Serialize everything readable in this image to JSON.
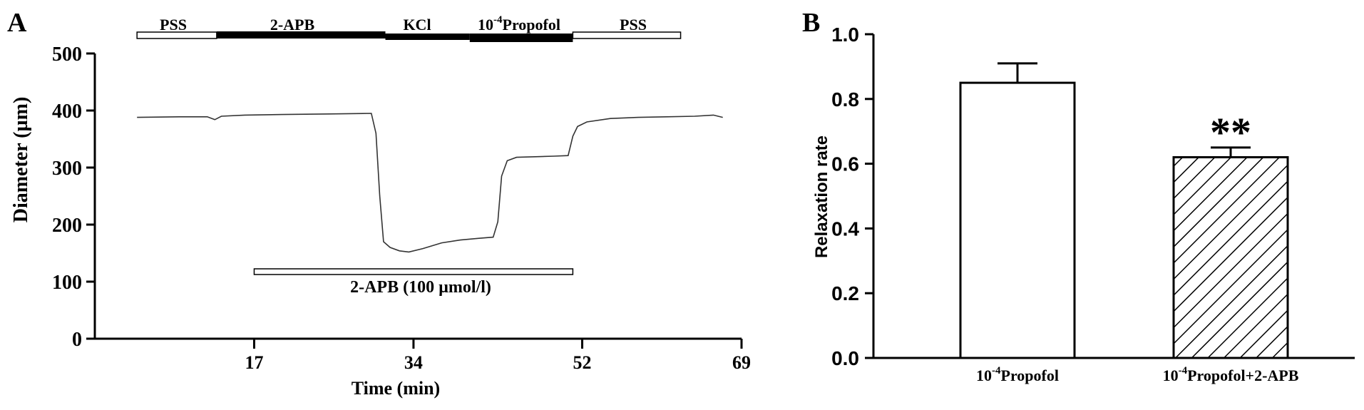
{
  "panel_a": {
    "letter": "A",
    "chart_data": {
      "type": "line",
      "xlabel": "Time (min)",
      "ylabel": "Diameter (µm)",
      "xlim": [
        0,
        69
      ],
      "ylim": [
        0,
        500
      ],
      "x_ticks": [
        17,
        34,
        52,
        69
      ],
      "y_ticks": [
        0,
        100,
        200,
        300,
        400,
        500
      ],
      "series": [
        {
          "x": [
            4.5,
            9,
            12,
            12.8,
            13.5,
            16,
            20,
            25,
            29.5,
            30,
            30.4,
            30.8,
            31.5,
            32.5,
            33.5,
            35,
            37,
            39,
            41,
            42.5,
            43,
            43.4,
            44,
            45,
            47,
            49,
            50.5,
            51,
            51.5,
            52.5,
            55,
            58,
            61,
            64,
            66,
            67
          ],
          "y": [
            388,
            389,
            389,
            384,
            390,
            392,
            393,
            394,
            395,
            360,
            250,
            170,
            160,
            154,
            152,
            158,
            168,
            173,
            176,
            178,
            205,
            285,
            312,
            318,
            319,
            320,
            321,
            355,
            372,
            380,
            386,
            388,
            389,
            390,
            392,
            388
          ]
        }
      ]
    },
    "treatment_bar": {
      "labels": [
        "PSS",
        "2-APB",
        "KCl",
        "10",
        "-4",
        "Propofol",
        "PSS"
      ],
      "segments": [
        {
          "name": "PSS",
          "x0": 4.5,
          "x1": 13
        },
        {
          "name": "2-APB",
          "x0": 13,
          "x1": 31
        },
        {
          "name": "KCl",
          "x0": 31,
          "x1": 40
        },
        {
          "name": "Propofol",
          "x0": 40,
          "x1": 51
        },
        {
          "name": "PSS",
          "x0": 51,
          "x1": 62.5
        }
      ]
    },
    "drug_bar": {
      "label": "2-APB (100 µmol/l)",
      "x0": 17,
      "x1": 51
    }
  },
  "panel_b": {
    "letter": "B",
    "chart_data": {
      "type": "bar",
      "ylabel": "Relaxation rate",
      "ylim": [
        0,
        1.0
      ],
      "y_ticks": [
        "0.0",
        "0.2",
        "0.4",
        "0.6",
        "0.8",
        "1.0"
      ],
      "categories": [
        {
          "base": "10",
          "exp": "-4",
          "rest": "Propofol"
        },
        {
          "base": "10",
          "exp": "-4",
          "rest": "Propofol+2-APB"
        }
      ],
      "values": [
        0.85,
        0.62
      ],
      "errors": [
        0.06,
        0.03
      ],
      "fills": [
        "white",
        "hatched"
      ],
      "annotations": [
        "",
        "**"
      ]
    }
  }
}
